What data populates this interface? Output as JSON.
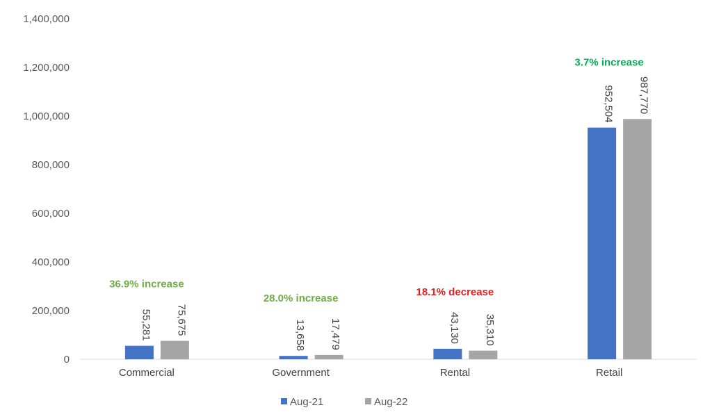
{
  "chart_data": {
    "type": "bar",
    "title": "",
    "xlabel": "",
    "ylabel": "",
    "categories": [
      "Commercial",
      "Government",
      "Rental",
      "Retail"
    ],
    "series": [
      {
        "name": "Aug-21",
        "color": "#4472C4",
        "values": [
          55281,
          13658,
          43130,
          952504
        ],
        "labels": [
          "55,281",
          "13,658",
          "43,130",
          "952,504"
        ]
      },
      {
        "name": "Aug-22",
        "color": "#A5A5A5",
        "values": [
          75675,
          17479,
          35310,
          987770
        ],
        "labels": [
          "75,675",
          "17,479",
          "35,310",
          "987,770"
        ]
      }
    ],
    "ylim": [
      0,
      1400000
    ],
    "yticks": [
      0,
      200000,
      400000,
      600000,
      800000,
      1000000,
      1200000,
      1400000
    ],
    "ytick_labels": [
      "0",
      "200,000",
      "400,000",
      "600,000",
      "800,000",
      "1,000,000",
      "1,200,000",
      "1,400,000"
    ],
    "annotations": [
      {
        "text": "36.9% increase",
        "color": "#70AD47"
      },
      {
        "text": "28.0% increase",
        "color": "#70AD47"
      },
      {
        "text": "18.1% decrease",
        "color": "#E02020"
      },
      {
        "text": "3.7% increase",
        "color": "#00B050"
      }
    ],
    "grid": false,
    "legend_position": "bottom"
  }
}
